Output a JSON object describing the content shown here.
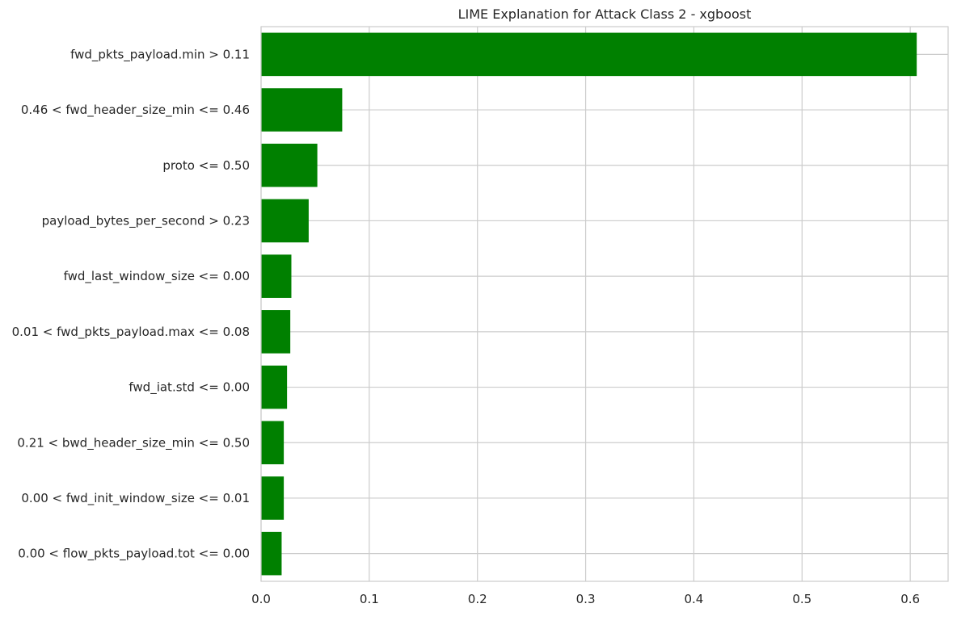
{
  "chart_data": {
    "type": "bar",
    "orientation": "horizontal",
    "title": "LIME Explanation for Attack Class 2 - xgboost",
    "xlabel": "",
    "ylabel": "",
    "xlim": [
      0.0,
      0.635
    ],
    "xticks": [
      0.0,
      0.1,
      0.2,
      0.3,
      0.4,
      0.5,
      0.6
    ],
    "xtick_labels": [
      "0.0",
      "0.1",
      "0.2",
      "0.3",
      "0.4",
      "0.5",
      "0.6"
    ],
    "grid": true,
    "bar_color": "#008000",
    "grid_color": "#cccccc",
    "categories": [
      "fwd_pkts_payload.min > 0.11",
      "0.46 < fwd_header_size_min <= 0.46",
      "proto <= 0.50",
      "payload_bytes_per_second > 0.23",
      "fwd_last_window_size <= 0.00",
      "0.01 < fwd_pkts_payload.max <= 0.08",
      "fwd_iat.std <= 0.00",
      "0.21 < bwd_header_size_min <= 0.50",
      "0.00 < fwd_init_window_size <= 0.01",
      "0.00 < flow_pkts_payload.tot <= 0.00"
    ],
    "values": [
      0.606,
      0.075,
      0.052,
      0.044,
      0.028,
      0.027,
      0.024,
      0.021,
      0.021,
      0.019
    ]
  }
}
